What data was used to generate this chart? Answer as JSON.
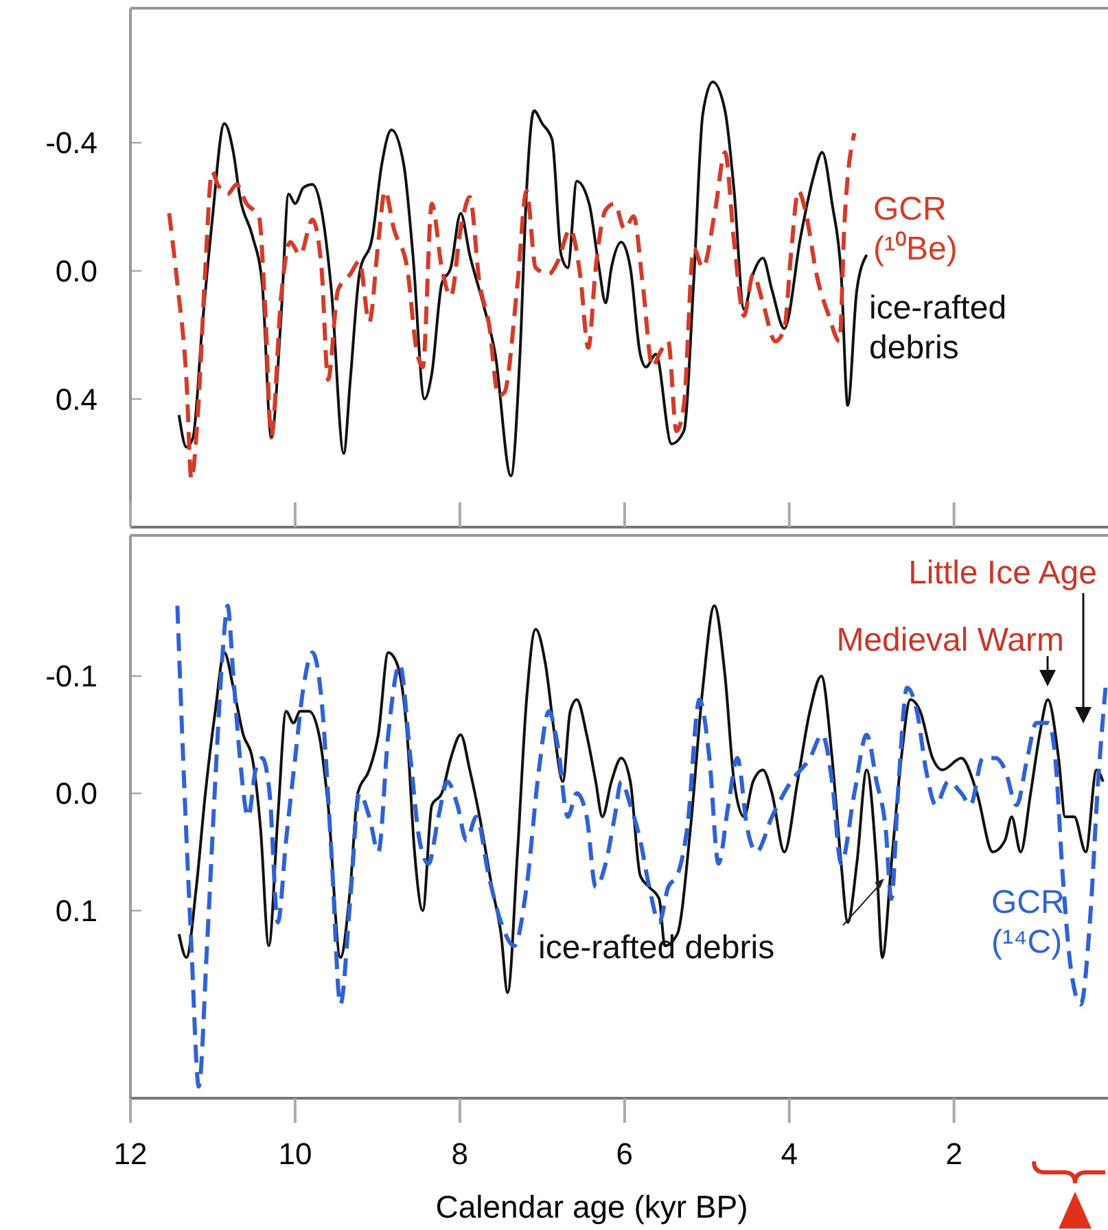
{
  "chart_data": [
    {
      "type": "line",
      "xlim": [
        12,
        0.13
      ],
      "xticks": [
        {
          "value": 12,
          "label": null
        },
        {
          "value": 10,
          "label": null
        },
        {
          "value": 8,
          "label": null
        },
        {
          "value": 6,
          "label": null
        },
        {
          "value": 4,
          "label": null
        },
        {
          "value": 2,
          "label": null
        }
      ],
      "ylim": [
        0.8,
        -0.82
      ],
      "yticks": [
        {
          "value": -0.4,
          "label": "-0.4"
        },
        {
          "value": 0,
          "label": "0.0"
        },
        {
          "value": 0.4,
          "label": "0.4"
        }
      ],
      "tick_labels": "y",
      "series": [
        {
          "name": "ice-rafted debris",
          "color": "#111111",
          "line_style": "solid",
          "x": [
            11.41,
            11.32,
            11.24,
            11.13,
            11.01,
            10.86,
            10.75,
            10.67,
            10.52,
            10.4,
            10.29,
            10.17,
            10.08,
            10.0,
            9.9,
            9.79,
            9.68,
            9.56,
            9.41,
            9.33,
            9.22,
            9.06,
            8.95,
            8.83,
            8.68,
            8.57,
            8.43,
            8.34,
            8.22,
            8.11,
            7.99,
            7.88,
            7.72,
            7.57,
            7.38,
            7.27,
            7.19,
            7.1,
            7.0,
            6.88,
            6.77,
            6.69,
            6.58,
            6.43,
            6.31,
            6.23,
            6.16,
            6.04,
            5.93,
            5.81,
            5.74,
            5.62,
            5.43,
            5.28,
            5.16,
            5.05,
            4.93,
            4.78,
            4.67,
            4.55,
            4.44,
            4.32,
            4.21,
            4.06,
            3.86,
            3.71,
            3.6,
            3.48,
            3.37,
            3.29,
            3.18,
            3.06
          ],
          "values": [
            0.45,
            0.55,
            0.52,
            0.18,
            -0.15,
            -0.46,
            -0.37,
            -0.23,
            -0.11,
            0.04,
            0.52,
            0.14,
            -0.24,
            -0.21,
            -0.26,
            -0.27,
            -0.19,
            0.06,
            0.57,
            0.34,
            0.01,
            -0.11,
            -0.33,
            -0.44,
            -0.33,
            -0.05,
            0.4,
            0.32,
            0.04,
            -0.01,
            -0.18,
            -0.05,
            0.1,
            0.26,
            0.64,
            0.26,
            -0.25,
            -0.5,
            -0.46,
            -0.41,
            -0.05,
            -0.01,
            -0.28,
            -0.21,
            -0.01,
            0.1,
            -0.01,
            -0.09,
            -0.01,
            0.26,
            0.3,
            0.26,
            0.54,
            0.5,
            0.03,
            -0.49,
            -0.59,
            -0.5,
            -0.25,
            0.12,
            0.01,
            -0.04,
            0.06,
            0.18,
            -0.11,
            -0.29,
            -0.37,
            -0.21,
            0.01,
            0.42,
            0.06,
            -0.05
          ]
        },
        {
          "name": "GCR (¹⁰Be)",
          "color": "#d23c28",
          "line_style": "dashed",
          "x": [
            11.53,
            11.43,
            11.32,
            11.26,
            11.18,
            11.09,
            11.01,
            10.94,
            10.82,
            10.71,
            10.59,
            10.44,
            10.36,
            10.29,
            10.17,
            10.06,
            9.94,
            9.79,
            9.68,
            9.6,
            9.48,
            9.33,
            9.22,
            9.1,
            8.99,
            8.91,
            8.8,
            8.64,
            8.53,
            8.45,
            8.34,
            8.22,
            8.11,
            7.99,
            7.88,
            7.76,
            7.65,
            7.53,
            7.46,
            7.3,
            7.19,
            7.08,
            6.92,
            6.81,
            6.66,
            6.54,
            6.44,
            6.35,
            6.23,
            6.12,
            6.0,
            5.89,
            5.78,
            5.66,
            5.58,
            5.47,
            5.37,
            5.28,
            5.16,
            5.05,
            4.9,
            4.78,
            4.67,
            4.55,
            4.44,
            4.32,
            4.17,
            4.06,
            3.98,
            3.89,
            3.79,
            3.67,
            3.52,
            3.39,
            3.33,
            3.21
          ],
          "values": [
            -0.18,
            0.04,
            0.34,
            0.65,
            0.44,
            -0.01,
            -0.31,
            -0.27,
            -0.24,
            -0.27,
            -0.21,
            -0.17,
            0.14,
            0.52,
            0.08,
            -0.09,
            -0.05,
            -0.16,
            -0.01,
            0.34,
            0.06,
            0.01,
            -0.03,
            0.16,
            -0.09,
            -0.25,
            -0.13,
            -0.01,
            0.24,
            0.3,
            -0.21,
            -0.01,
            0.08,
            -0.13,
            -0.23,
            0.04,
            0.16,
            0.39,
            0.38,
            0.04,
            -0.25,
            -0.01,
            0.01,
            -0.03,
            -0.13,
            0.01,
            0.24,
            -0.01,
            -0.19,
            -0.21,
            -0.13,
            -0.17,
            0.04,
            0.3,
            0.26,
            0.22,
            0.5,
            0.42,
            -0.07,
            -0.01,
            -0.19,
            -0.37,
            -0.09,
            0.14,
            0.01,
            0.1,
            0.22,
            0.18,
            -0.05,
            -0.25,
            -0.17,
            0.01,
            0.14,
            0.22,
            -0.15,
            -0.43
          ]
        }
      ]
    },
    {
      "type": "line",
      "xlabel": "Calendar age (kyr BP)",
      "xlim": [
        12,
        0.13
      ],
      "xticks": [
        12,
        10,
        8,
        6,
        4,
        2
      ],
      "ylim": [
        0.26,
        -0.22
      ],
      "yticks": [
        {
          "value": -0.1,
          "label": "-0.1"
        },
        {
          "value": 0,
          "label": "0.0"
        },
        {
          "value": 0.1,
          "label": "0.1"
        }
      ],
      "annotations": [
        "Medieval Warm",
        "Little Ice Age"
      ],
      "series": [
        {
          "name": "ice-rafted debris",
          "color": "#111111",
          "line_style": "solid",
          "x": [
            11.41,
            11.32,
            11.2,
            11.09,
            10.97,
            10.86,
            10.75,
            10.63,
            10.52,
            10.42,
            10.32,
            10.21,
            10.11,
            10.02,
            9.94,
            9.83,
            9.71,
            9.6,
            9.45,
            9.33,
            9.24,
            9.1,
            8.99,
            8.87,
            8.76,
            8.64,
            8.55,
            8.45,
            8.34,
            8.22,
            8.11,
            7.99,
            7.88,
            7.76,
            7.61,
            7.5,
            7.42,
            7.3,
            7.19,
            7.08,
            6.96,
            6.85,
            6.75,
            6.66,
            6.58,
            6.46,
            6.35,
            6.27,
            6.16,
            6.04,
            5.93,
            5.81,
            5.7,
            5.58,
            5.51,
            5.36,
            5.2,
            5.05,
            4.91,
            4.78,
            4.67,
            4.55,
            4.44,
            4.32,
            4.21,
            4.06,
            3.9,
            3.75,
            3.61,
            3.48,
            3.37,
            3.29,
            3.18,
            3.06,
            2.94,
            2.87,
            2.76,
            2.64,
            2.53,
            2.41,
            2.26,
            2.14,
            1.91,
            1.72,
            1.53,
            1.38,
            1.3,
            1.19,
            1.07,
            0.96,
            0.86,
            0.73,
            0.65,
            0.54,
            0.4,
            0.27,
            0.19
          ],
          "values": [
            0.12,
            0.14,
            0.08,
            0.0,
            -0.07,
            -0.12,
            -0.09,
            -0.05,
            -0.03,
            0.03,
            0.13,
            0.02,
            -0.07,
            -0.06,
            -0.07,
            -0.07,
            -0.05,
            0.01,
            0.14,
            0.08,
            0.0,
            -0.02,
            -0.05,
            -0.12,
            -0.11,
            -0.05,
            0.05,
            0.1,
            0.01,
            0.0,
            -0.03,
            -0.05,
            -0.02,
            0.02,
            0.08,
            0.12,
            0.17,
            0.05,
            -0.08,
            -0.14,
            -0.11,
            -0.05,
            -0.01,
            -0.07,
            -0.08,
            -0.05,
            -0.01,
            0.02,
            -0.01,
            -0.03,
            -0.01,
            0.07,
            0.08,
            0.09,
            0.13,
            0.12,
            0.03,
            -0.09,
            -0.16,
            -0.1,
            -0.01,
            0.02,
            -0.01,
            -0.02,
            0.0,
            0.05,
            -0.01,
            -0.07,
            -0.1,
            -0.03,
            0.06,
            0.11,
            0.06,
            -0.02,
            0.06,
            0.14,
            0.06,
            -0.03,
            -0.08,
            -0.07,
            -0.03,
            -0.02,
            -0.03,
            0.0,
            0.05,
            0.04,
            0.02,
            0.05,
            0.0,
            -0.05,
            -0.08,
            -0.03,
            0.02,
            0.02,
            0.05,
            -0.02,
            -0.01
          ]
        },
        {
          "name": "GCR (¹⁴C)",
          "color": "#2f63d3",
          "line_style": "dashed",
          "x": [
            11.43,
            11.36,
            11.26,
            11.17,
            11.07,
            10.97,
            10.88,
            10.82,
            10.75,
            10.67,
            10.57,
            10.48,
            10.4,
            10.31,
            10.21,
            10.11,
            10.0,
            9.9,
            9.79,
            9.68,
            9.56,
            9.45,
            9.33,
            9.22,
            9.1,
            8.99,
            8.87,
            8.73,
            8.6,
            8.49,
            8.38,
            8.26,
            8.15,
            8.03,
            7.92,
            7.8,
            7.65,
            7.5,
            7.34,
            7.19,
            7.04,
            6.92,
            6.81,
            6.69,
            6.58,
            6.46,
            6.35,
            6.23,
            6.12,
            6.04,
            5.93,
            5.81,
            5.7,
            5.58,
            5.47,
            5.36,
            5.24,
            5.09,
            4.97,
            4.86,
            4.74,
            4.63,
            4.51,
            4.4,
            4.21,
            3.98,
            3.75,
            3.6,
            3.48,
            3.37,
            3.21,
            3.06,
            2.94,
            2.83,
            2.76,
            2.68,
            2.57,
            2.45,
            2.34,
            2.22,
            2.07,
            1.91,
            1.8,
            1.65,
            1.49,
            1.38,
            1.24,
            1.11,
            1.0,
            0.85,
            0.77,
            0.68,
            0.58,
            0.46,
            0.35,
            0.25,
            0.16
          ],
          "values": [
            -0.16,
            -0.03,
            0.13,
            0.25,
            0.13,
            -0.01,
            -0.12,
            -0.16,
            -0.1,
            -0.03,
            0.02,
            -0.02,
            -0.03,
            0.0,
            0.11,
            0.04,
            -0.03,
            -0.09,
            -0.12,
            -0.08,
            0.05,
            0.18,
            0.09,
            0.0,
            0.02,
            0.05,
            -0.05,
            -0.11,
            -0.03,
            0.04,
            0.06,
            0.02,
            -0.01,
            0.01,
            0.04,
            0.02,
            0.07,
            0.11,
            0.13,
            0.08,
            -0.02,
            -0.07,
            -0.04,
            0.02,
            0.0,
            0.02,
            0.08,
            0.06,
            0.02,
            -0.01,
            0.01,
            0.04,
            0.08,
            0.11,
            0.08,
            0.07,
            0.03,
            -0.08,
            -0.03,
            0.06,
            0.01,
            -0.03,
            0.03,
            0.05,
            0.02,
            -0.01,
            -0.03,
            -0.05,
            -0.01,
            0.06,
            0.0,
            -0.05,
            -0.01,
            0.03,
            0.09,
            0.0,
            -0.09,
            -0.07,
            -0.02,
            0.01,
            -0.01,
            0.0,
            0.01,
            -0.03,
            -0.03,
            -0.02,
            0.01,
            -0.03,
            -0.06,
            -0.06,
            -0.03,
            0.07,
            0.15,
            0.18,
            0.11,
            -0.01,
            -0.09
          ]
        }
      ]
    }
  ]
}
